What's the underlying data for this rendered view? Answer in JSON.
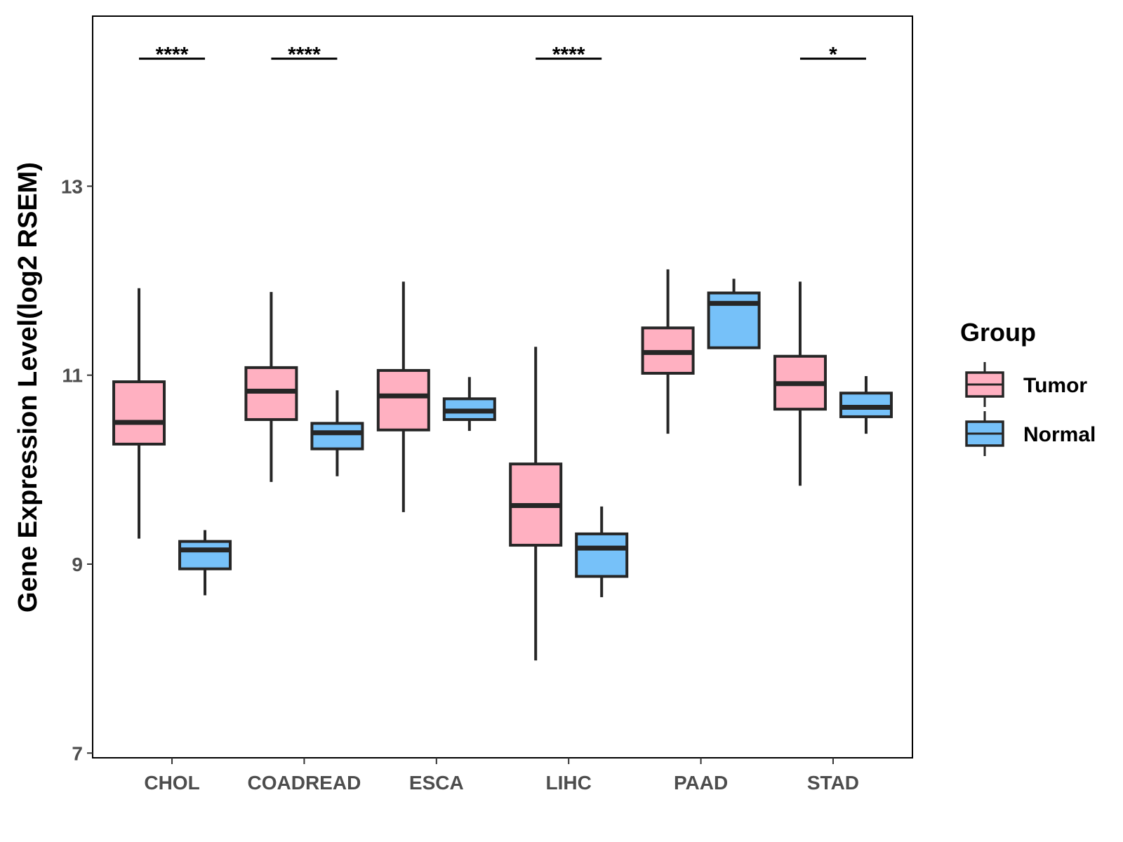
{
  "chart_data": {
    "type": "boxplot",
    "title": "",
    "xlabel": "",
    "ylabel": "Gene Expression Level(log2 RSEM)",
    "ylim": [
      6.95,
      14.8
    ],
    "yticks": [
      7,
      9,
      11,
      13
    ],
    "grid": false,
    "categories": [
      "CHOL",
      "COADREAD",
      "ESCA",
      "LIHC",
      "PAAD",
      "STAD"
    ],
    "legend": {
      "title": "Group",
      "position": "right",
      "entries": [
        {
          "name": "Tumor",
          "color": "#FFB0C1"
        },
        {
          "name": "Normal",
          "color": "#76C1F9"
        }
      ]
    },
    "series": [
      {
        "name": "Tumor",
        "color": "#FFB0C1",
        "boxes": [
          {
            "whisker_low": 9.27,
            "q1": 10.27,
            "median": 10.5,
            "q3": 10.93,
            "whisker_high": 11.92
          },
          {
            "whisker_low": 9.87,
            "q1": 10.53,
            "median": 10.83,
            "q3": 11.08,
            "whisker_high": 11.88
          },
          {
            "whisker_low": 9.55,
            "q1": 10.42,
            "median": 10.78,
            "q3": 11.05,
            "whisker_high": 11.99
          },
          {
            "whisker_low": 7.98,
            "q1": 9.2,
            "median": 9.62,
            "q3": 10.06,
            "whisker_high": 11.3
          },
          {
            "whisker_low": 10.38,
            "q1": 11.02,
            "median": 11.24,
            "q3": 11.5,
            "whisker_high": 12.12
          },
          {
            "whisker_low": 9.83,
            "q1": 10.64,
            "median": 10.91,
            "q3": 11.2,
            "whisker_high": 11.99
          }
        ]
      },
      {
        "name": "Normal",
        "color": "#76C1F9",
        "boxes": [
          {
            "whisker_low": 8.67,
            "q1": 8.95,
            "median": 9.15,
            "q3": 9.24,
            "whisker_high": 9.36
          },
          {
            "whisker_low": 9.93,
            "q1": 10.22,
            "median": 10.39,
            "q3": 10.49,
            "whisker_high": 10.84
          },
          {
            "whisker_low": 10.41,
            "q1": 10.53,
            "median": 10.62,
            "q3": 10.75,
            "whisker_high": 10.98
          },
          {
            "whisker_low": 8.65,
            "q1": 8.87,
            "median": 9.17,
            "q3": 9.32,
            "whisker_high": 9.61
          },
          {
            "whisker_low": 11.29,
            "q1": 11.29,
            "median": 11.76,
            "q3": 11.87,
            "whisker_high": 12.02
          },
          {
            "whisker_low": 10.38,
            "q1": 10.56,
            "median": 10.66,
            "q3": 10.81,
            "whisker_high": 10.99
          }
        ]
      }
    ],
    "significance": [
      {
        "category": "CHOL",
        "label": "****",
        "y": 14.35
      },
      {
        "category": "COADREAD",
        "label": "****",
        "y": 14.35
      },
      {
        "category": "LIHC",
        "label": "****",
        "y": 14.35
      },
      {
        "category": "STAD",
        "label": "*",
        "y": 14.35
      }
    ]
  }
}
